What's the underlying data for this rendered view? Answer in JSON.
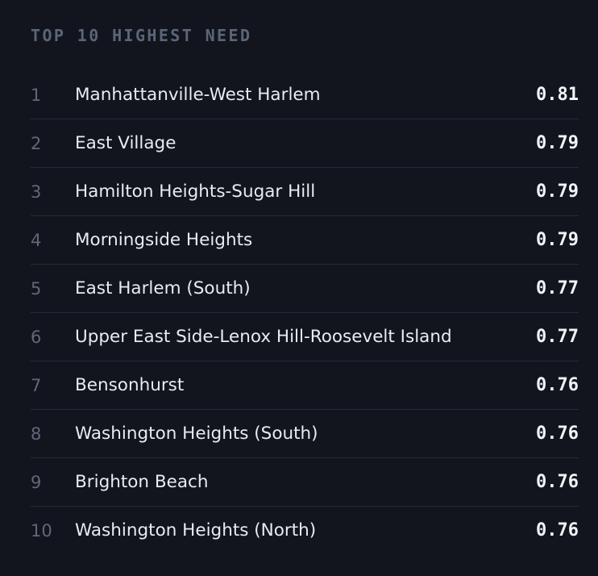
{
  "panel": {
    "heading": "TOP 10 HIGHEST NEED"
  },
  "items": [
    {
      "rank": "1",
      "name": "Manhattanville-West Harlem",
      "score": "0.81"
    },
    {
      "rank": "2",
      "name": "East Village",
      "score": "0.79"
    },
    {
      "rank": "3",
      "name": "Hamilton Heights-Sugar Hill",
      "score": "0.79"
    },
    {
      "rank": "4",
      "name": "Morningside Heights",
      "score": "0.79"
    },
    {
      "rank": "5",
      "name": "East Harlem (South)",
      "score": "0.77"
    },
    {
      "rank": "6",
      "name": "Upper East Side-Lenox Hill-Roosevelt Island",
      "score": "0.77"
    },
    {
      "rank": "7",
      "name": "Bensonhurst",
      "score": "0.76"
    },
    {
      "rank": "8",
      "name": "Washington Heights (South)",
      "score": "0.76"
    },
    {
      "rank": "9",
      "name": "Brighton Beach",
      "score": "0.76"
    },
    {
      "rank": "10",
      "name": "Washington Heights (North)",
      "score": "0.76"
    }
  ],
  "colors": {
    "background": "#12151d",
    "heading": "#5c6578",
    "rank": "#5f687a",
    "name": "#e8ebf1",
    "score": "#f1f3f7",
    "divider": "#262b37"
  }
}
